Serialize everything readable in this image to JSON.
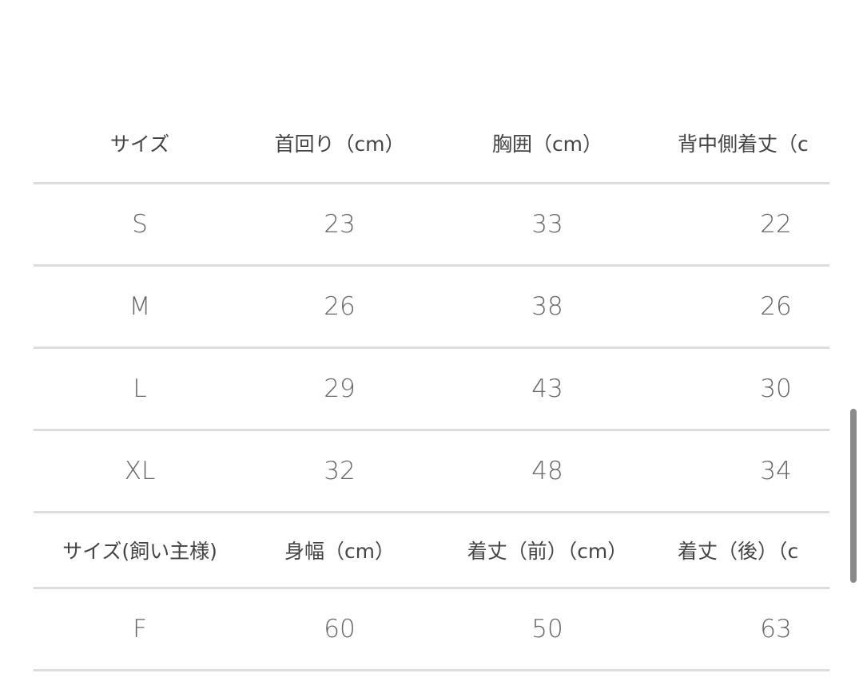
{
  "table1": {
    "headers": [
      "サイズ",
      "首回り（cm）",
      "胸囲（cm）",
      "背中側着丈（c"
    ],
    "rows": [
      [
        "S",
        "23",
        "33",
        "22"
      ],
      [
        "M",
        "26",
        "38",
        "26"
      ],
      [
        "L",
        "29",
        "43",
        "30"
      ],
      [
        "XL",
        "32",
        "48",
        "34"
      ]
    ]
  },
  "table2": {
    "headers": [
      "サイズ(飼い主様)",
      "身幅（cm）",
      "着丈（前）（cm）",
      "着丈（後）（c"
    ],
    "rows": [
      [
        "F",
        "60",
        "50",
        "63"
      ]
    ]
  }
}
